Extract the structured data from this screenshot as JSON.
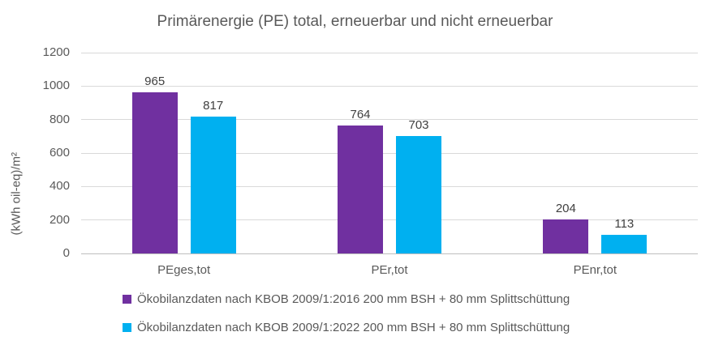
{
  "chart_data": {
    "type": "bar",
    "title": "Primärenergie (PE) total, erneuerbar und nicht erneuerbar",
    "xlabel": "",
    "ylabel": "(kWh oil-eq)/m²",
    "categories": [
      "PEges,tot",
      "PEr,tot",
      "PEnr,tot"
    ],
    "series": [
      {
        "name": "Ökobilanzdaten nach KBOB 2009/1:2016 200 mm BSH + 80 mm Splittschüttung",
        "color": "#7030A0",
        "values": [
          965,
          764,
          204
        ]
      },
      {
        "name": "Ökobilanzdaten nach KBOB 2009/1:2022 200 mm BSH + 80 mm Splittschüttung",
        "color": "#00B0F0",
        "values": [
          817,
          703,
          113
        ]
      }
    ],
    "ylim": [
      0,
      1200
    ],
    "yticks": [
      0,
      200,
      400,
      600,
      800,
      1000,
      1200
    ],
    "grid": true,
    "legend_position": "bottom",
    "data_labels": true
  },
  "style_colors": {
    "gridline": "#d9d9d9",
    "axis_line": "#bfbfbf",
    "text": "#595959",
    "data_label_text": "#404040",
    "background": "#ffffff"
  }
}
